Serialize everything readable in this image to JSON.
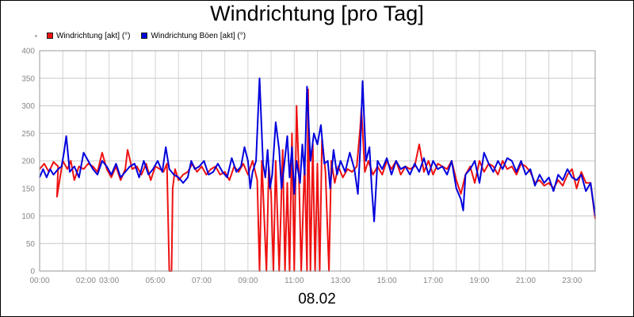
{
  "title": "Windrichtung [pro Tag]",
  "footer": "08.02",
  "legend": [
    {
      "label": "Windrichtung [akt] (°)",
      "color": "#ee1111"
    },
    {
      "label": "Windrichtung Böen [akt] (°)",
      "color": "#0000dd"
    }
  ],
  "chart_data": {
    "type": "line",
    "title": "Windrichtung [pro Tag]",
    "xlabel": "08.02",
    "ylabel": "",
    "ylim": [
      0,
      400
    ],
    "yticks": [
      0,
      50,
      100,
      150,
      200,
      250,
      300,
      350,
      400
    ],
    "xlim": [
      0,
      24
    ],
    "xticks": [
      {
        "x": 0,
        "label": "00:00"
      },
      {
        "x": 2,
        "label": "02:00"
      },
      {
        "x": 3,
        "label": "03:00"
      },
      {
        "x": 5,
        "label": "05:00"
      },
      {
        "x": 7,
        "label": "07:00"
      },
      {
        "x": 9,
        "label": "09:00"
      },
      {
        "x": 11,
        "label": "11:00"
      },
      {
        "x": 13,
        "label": "13:00"
      },
      {
        "x": 15,
        "label": "15:00"
      },
      {
        "x": 17,
        "label": "17:00"
      },
      {
        "x": 19,
        "label": "19:00"
      },
      {
        "x": 21,
        "label": "21:00"
      },
      {
        "x": 23,
        "label": "23:00"
      }
    ],
    "grid": true,
    "legend_position": "top-left",
    "series": [
      {
        "name": "Windrichtung [akt] (°)",
        "color": "#ee1111",
        "points": [
          [
            0,
            185
          ],
          [
            0.2,
            195
          ],
          [
            0.4,
            180
          ],
          [
            0.6,
            198
          ],
          [
            0.8,
            190
          ],
          [
            0.75,
            135
          ],
          [
            1.0,
            200
          ],
          [
            1.2,
            185
          ],
          [
            1.35,
            200
          ],
          [
            1.5,
            165
          ],
          [
            1.7,
            190
          ],
          [
            1.9,
            185
          ],
          [
            2.1,
            195
          ],
          [
            2.3,
            190
          ],
          [
            2.5,
            180
          ],
          [
            2.7,
            215
          ],
          [
            2.9,
            185
          ],
          [
            3.1,
            170
          ],
          [
            3.3,
            190
          ],
          [
            3.5,
            165
          ],
          [
            3.7,
            185
          ],
          [
            3.8,
            220
          ],
          [
            4.0,
            185
          ],
          [
            4.2,
            190
          ],
          [
            4.4,
            175
          ],
          [
            4.6,
            195
          ],
          [
            4.8,
            165
          ],
          [
            5.0,
            190
          ],
          [
            5.2,
            185
          ],
          [
            5.35,
            180
          ],
          [
            5.5,
            195
          ],
          [
            5.6,
            0
          ],
          [
            5.7,
            0
          ],
          [
            5.75,
            150
          ],
          [
            5.85,
            185
          ],
          [
            6.0,
            165
          ],
          [
            6.2,
            175
          ],
          [
            6.4,
            180
          ],
          [
            6.6,
            195
          ],
          [
            6.8,
            180
          ],
          [
            7.0,
            190
          ],
          [
            7.2,
            175
          ],
          [
            7.4,
            185
          ],
          [
            7.6,
            190
          ],
          [
            7.8,
            175
          ],
          [
            8.0,
            180
          ],
          [
            8.2,
            165
          ],
          [
            8.4,
            190
          ],
          [
            8.6,
            180
          ],
          [
            8.8,
            195
          ],
          [
            9.0,
            175
          ],
          [
            9.2,
            200
          ],
          [
            9.4,
            165
          ],
          [
            9.5,
            0
          ],
          [
            9.6,
            200
          ],
          [
            9.8,
            0
          ],
          [
            9.9,
            190
          ],
          [
            10.0,
            140
          ],
          [
            10.1,
            0
          ],
          [
            10.2,
            200
          ],
          [
            10.35,
            0
          ],
          [
            10.5,
            220
          ],
          [
            10.6,
            0
          ],
          [
            10.7,
            160
          ],
          [
            10.8,
            0
          ],
          [
            10.9,
            250
          ],
          [
            11.0,
            0
          ],
          [
            11.1,
            300
          ],
          [
            11.2,
            180
          ],
          [
            11.3,
            0
          ],
          [
            11.45,
            200
          ],
          [
            11.55,
            0
          ],
          [
            11.6,
            330
          ],
          [
            11.7,
            0
          ],
          [
            11.8,
            230
          ],
          [
            11.9,
            0
          ],
          [
            12.0,
            195
          ],
          [
            12.1,
            0
          ],
          [
            12.2,
            240
          ],
          [
            12.35,
            180
          ],
          [
            12.5,
            0
          ],
          [
            12.6,
            200
          ],
          [
            12.75,
            160
          ],
          [
            12.9,
            190
          ],
          [
            13.1,
            170
          ],
          [
            13.3,
            185
          ],
          [
            13.5,
            180
          ],
          [
            13.7,
            190
          ],
          [
            13.85,
            260
          ],
          [
            13.9,
            295
          ],
          [
            14.05,
            180
          ],
          [
            14.2,
            200
          ],
          [
            14.4,
            175
          ],
          [
            14.6,
            190
          ],
          [
            14.8,
            175
          ],
          [
            15.0,
            200
          ],
          [
            15.2,
            185
          ],
          [
            15.4,
            200
          ],
          [
            15.6,
            175
          ],
          [
            15.8,
            190
          ],
          [
            16.0,
            185
          ],
          [
            16.2,
            190
          ],
          [
            16.4,
            230
          ],
          [
            16.6,
            180
          ],
          [
            16.8,
            200
          ],
          [
            17.0,
            175
          ],
          [
            17.2,
            195
          ],
          [
            17.4,
            190
          ],
          [
            17.6,
            185
          ],
          [
            17.8,
            200
          ],
          [
            18.0,
            165
          ],
          [
            18.2,
            140
          ],
          [
            18.4,
            175
          ],
          [
            18.6,
            190
          ],
          [
            18.8,
            160
          ],
          [
            19.0,
            200
          ],
          [
            19.2,
            180
          ],
          [
            19.4,
            195
          ],
          [
            19.6,
            190
          ],
          [
            19.8,
            175
          ],
          [
            20.0,
            200
          ],
          [
            20.2,
            185
          ],
          [
            20.4,
            190
          ],
          [
            20.6,
            175
          ],
          [
            20.8,
            195
          ],
          [
            21.0,
            190
          ],
          [
            21.2,
            180
          ],
          [
            21.4,
            160
          ],
          [
            21.6,
            165
          ],
          [
            21.8,
            155
          ],
          [
            22.0,
            160
          ],
          [
            22.2,
            150
          ],
          [
            22.4,
            165
          ],
          [
            22.6,
            155
          ],
          [
            22.8,
            175
          ],
          [
            23.0,
            185
          ],
          [
            23.2,
            150
          ],
          [
            23.4,
            180
          ],
          [
            23.6,
            160
          ],
          [
            23.8,
            160
          ],
          [
            24.0,
            95
          ]
        ]
      },
      {
        "name": "Windrichtung Böen [akt] (°)",
        "color": "#0000dd",
        "points": [
          [
            0,
            170
          ],
          [
            0.15,
            185
          ],
          [
            0.3,
            170
          ],
          [
            0.45,
            185
          ],
          [
            0.6,
            175
          ],
          [
            0.8,
            185
          ],
          [
            0.95,
            190
          ],
          [
            1.05,
            215
          ],
          [
            1.15,
            245
          ],
          [
            1.3,
            180
          ],
          [
            1.5,
            190
          ],
          [
            1.7,
            170
          ],
          [
            1.9,
            215
          ],
          [
            2.1,
            200
          ],
          [
            2.3,
            185
          ],
          [
            2.5,
            175
          ],
          [
            2.7,
            200
          ],
          [
            2.9,
            190
          ],
          [
            3.1,
            175
          ],
          [
            3.3,
            195
          ],
          [
            3.5,
            170
          ],
          [
            3.7,
            180
          ],
          [
            3.9,
            190
          ],
          [
            4.1,
            195
          ],
          [
            4.3,
            170
          ],
          [
            4.5,
            200
          ],
          [
            4.7,
            175
          ],
          [
            4.9,
            185
          ],
          [
            5.1,
            200
          ],
          [
            5.3,
            180
          ],
          [
            5.45,
            225
          ],
          [
            5.6,
            185
          ],
          [
            5.8,
            175
          ],
          [
            6.0,
            170
          ],
          [
            6.2,
            160
          ],
          [
            6.4,
            170
          ],
          [
            6.55,
            200
          ],
          [
            6.7,
            185
          ],
          [
            6.9,
            190
          ],
          [
            7.1,
            200
          ],
          [
            7.3,
            175
          ],
          [
            7.5,
            180
          ],
          [
            7.7,
            195
          ],
          [
            7.9,
            180
          ],
          [
            8.1,
            170
          ],
          [
            8.3,
            205
          ],
          [
            8.5,
            180
          ],
          [
            8.7,
            190
          ],
          [
            8.85,
            225
          ],
          [
            9.0,
            200
          ],
          [
            9.1,
            150
          ],
          [
            9.2,
            180
          ],
          [
            9.35,
            200
          ],
          [
            9.5,
            350
          ],
          [
            9.65,
            195
          ],
          [
            9.75,
            170
          ],
          [
            9.85,
            220
          ],
          [
            9.95,
            150
          ],
          [
            10.05,
            175
          ],
          [
            10.2,
            270
          ],
          [
            10.35,
            220
          ],
          [
            10.45,
            150
          ],
          [
            10.55,
            185
          ],
          [
            10.7,
            245
          ],
          [
            10.8,
            170
          ],
          [
            10.9,
            225
          ],
          [
            11.0,
            140
          ],
          [
            11.1,
            200
          ],
          [
            11.25,
            160
          ],
          [
            11.35,
            230
          ],
          [
            11.45,
            175
          ],
          [
            11.55,
            335
          ],
          [
            11.7,
            200
          ],
          [
            11.85,
            250
          ],
          [
            12.0,
            230
          ],
          [
            12.15,
            265
          ],
          [
            12.3,
            195
          ],
          [
            12.45,
            200
          ],
          [
            12.55,
            150
          ],
          [
            12.7,
            220
          ],
          [
            12.85,
            175
          ],
          [
            13.0,
            200
          ],
          [
            13.2,
            180
          ],
          [
            13.4,
            215
          ],
          [
            13.6,
            185
          ],
          [
            13.75,
            140
          ],
          [
            13.85,
            220
          ],
          [
            13.95,
            345
          ],
          [
            14.1,
            200
          ],
          [
            14.25,
            225
          ],
          [
            14.35,
            150
          ],
          [
            14.45,
            90
          ],
          [
            14.6,
            200
          ],
          [
            14.8,
            185
          ],
          [
            15.0,
            205
          ],
          [
            15.2,
            175
          ],
          [
            15.4,
            200
          ],
          [
            15.6,
            185
          ],
          [
            15.8,
            190
          ],
          [
            16.0,
            175
          ],
          [
            16.2,
            195
          ],
          [
            16.4,
            180
          ],
          [
            16.6,
            205
          ],
          [
            16.8,
            175
          ],
          [
            17.0,
            200
          ],
          [
            17.2,
            185
          ],
          [
            17.4,
            190
          ],
          [
            17.6,
            175
          ],
          [
            17.8,
            200
          ],
          [
            18.0,
            150
          ],
          [
            18.2,
            130
          ],
          [
            18.3,
            110
          ],
          [
            18.4,
            175
          ],
          [
            18.6,
            185
          ],
          [
            18.8,
            200
          ],
          [
            19.0,
            160
          ],
          [
            19.2,
            215
          ],
          [
            19.4,
            195
          ],
          [
            19.6,
            180
          ],
          [
            19.8,
            200
          ],
          [
            20.0,
            185
          ],
          [
            20.2,
            205
          ],
          [
            20.4,
            200
          ],
          [
            20.6,
            180
          ],
          [
            20.8,
            200
          ],
          [
            21.0,
            175
          ],
          [
            21.2,
            185
          ],
          [
            21.4,
            155
          ],
          [
            21.6,
            175
          ],
          [
            21.8,
            160
          ],
          [
            22.0,
            170
          ],
          [
            22.2,
            145
          ],
          [
            22.4,
            175
          ],
          [
            22.6,
            165
          ],
          [
            22.8,
            185
          ],
          [
            23.0,
            170
          ],
          [
            23.2,
            165
          ],
          [
            23.4,
            175
          ],
          [
            23.6,
            145
          ],
          [
            23.8,
            160
          ],
          [
            24.0,
            100
          ]
        ]
      }
    ]
  }
}
